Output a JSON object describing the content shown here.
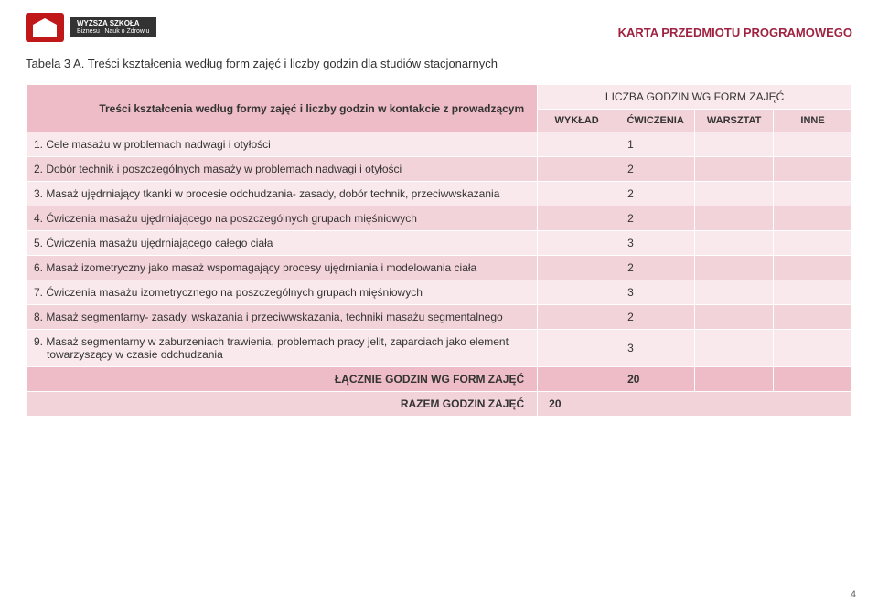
{
  "colors": {
    "header_p1": "#f9e9ec",
    "header_p2": "#f3d3da",
    "header_p3": "#eebcc7",
    "row_alt_a": "#f9e9ec",
    "row_alt_b": "#f3d3da",
    "total_bg": "#eebcc7",
    "header_text": "#9f2241",
    "body_text": "#333333"
  },
  "header_title": "KARTA PRZEDMIOTU PROGRAMOWEGO",
  "logo_line1": "WYŻSZA SZKOŁA",
  "logo_line2": "Biznesu i Nauk o Zdrowiu",
  "caption": "Tabela 3 A. Treści kształcenia według form zajęć i liczby godzin dla studiów stacjonarnych",
  "table": {
    "super_header": "LICZBA GODZIN WG FORM ZAJĘĆ",
    "content_header": "Treści kształcenia według formy zajęć i liczby godzin w kontakcie z prowadzącym",
    "columns": [
      "WYKŁAD",
      "ĆWICZENIA",
      "WARSZTAT",
      "INNE"
    ],
    "rows": [
      {
        "n": "1.",
        "text": "Cele masażu w problemach nadwagi i otyłości",
        "vals": [
          "",
          "1",
          "",
          ""
        ]
      },
      {
        "n": "2.",
        "text": "Dobór technik i poszczególnych masaży w problemach nadwagi i otyłości",
        "vals": [
          "",
          "2",
          "",
          ""
        ]
      },
      {
        "n": "3.",
        "text": "Masaż ujędrniający tkanki w procesie odchudzania- zasady, dobór technik, przeciwwskazania",
        "vals": [
          "",
          "2",
          "",
          ""
        ]
      },
      {
        "n": "4.",
        "text": "Ćwiczenia masażu ujędrniającego na poszczególnych grupach mięśniowych",
        "vals": [
          "",
          "2",
          "",
          ""
        ]
      },
      {
        "n": "5.",
        "text": "Ćwiczenia masażu ujędrniającego całego ciała",
        "vals": [
          "",
          "3",
          "",
          ""
        ]
      },
      {
        "n": "6.",
        "text": "Masaż izometryczny jako masaż wspomagający procesy ujędrniania i modelowania ciała",
        "vals": [
          "",
          "2",
          "",
          ""
        ]
      },
      {
        "n": "7.",
        "text": "Ćwiczenia masażu izometrycznego na poszczególnych grupach mięśniowych",
        "vals": [
          "",
          "3",
          "",
          ""
        ]
      },
      {
        "n": "8.",
        "text": "Masaż segmentarny- zasady, wskazania i przeciwwskazania, techniki masażu segmentalnego",
        "vals": [
          "",
          "2",
          "",
          ""
        ]
      },
      {
        "n": "9.",
        "text": "Masaż segmentarny w zaburzeniach trawienia, problemach pracy jelit, zaparciach jako element towarzyszący w czasie odchudzania",
        "vals": [
          "",
          "3",
          "",
          ""
        ]
      }
    ],
    "total_form_label": "ŁĄCZNIE GODZIN WG FORM ZAJĘĆ",
    "total_form_vals": [
      "",
      "20",
      "",
      ""
    ],
    "grand_label": "RAZEM GODZIN ZAJĘĆ",
    "grand_val": "20"
  },
  "page_number": "4"
}
